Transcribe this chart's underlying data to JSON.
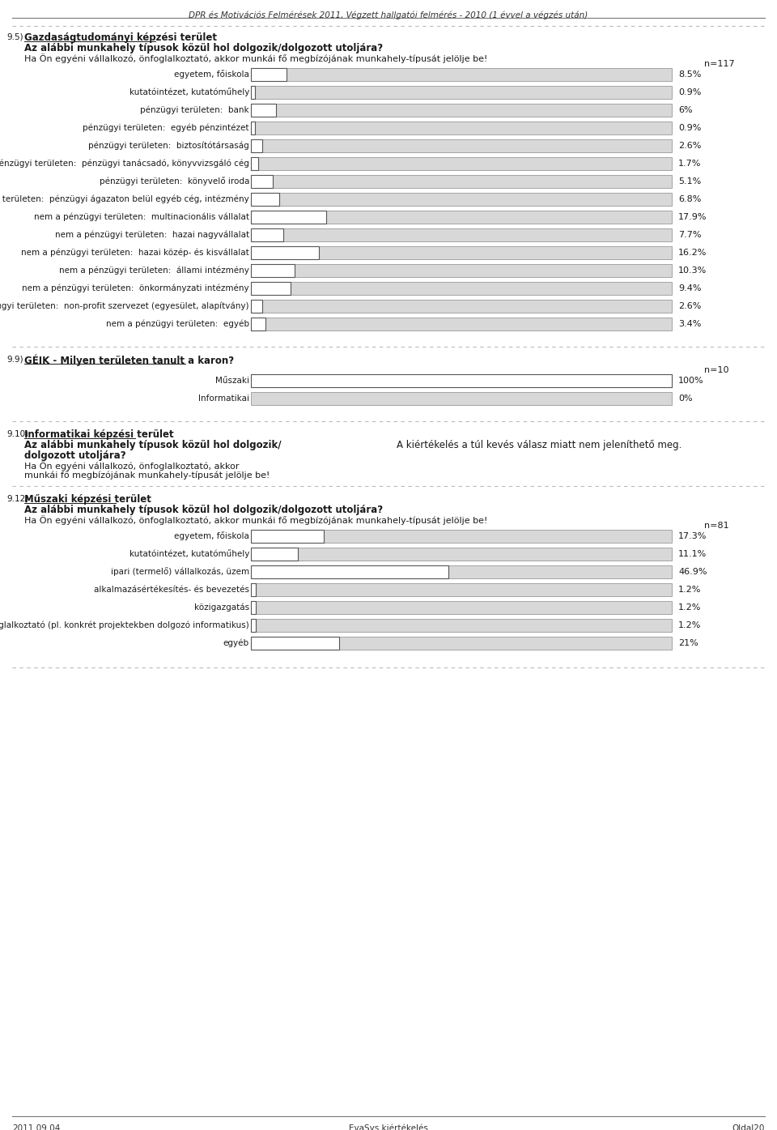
{
  "page_header": "DPR és Motivációs Felmérések 2011, Végzett hallgatói felmérés - 2010 (1 évvel a végzés után)",
  "page_footer_left": "2011.09.04",
  "page_footer_center": "EvaSys kiértékelés",
  "page_footer_right": "Oldal20",
  "section1_number": "9.5)",
  "section1_title": "Gazdaságtudományi képzési terület",
  "section1_subtitle": "Az alábbi munkahely típusok közül hol dolgozik/dolgozott utoljára?",
  "section1_desc": "Ha Ön egyéni vállalkozó, önfoglalkoztató, akkor munkái fő megbízójának munkahely-típusát jelölje be!",
  "section1_n": "n=117",
  "section1_bars": [
    {
      "label": "egyetem, főiskola",
      "value": 8.5,
      "pct": "8.5%"
    },
    {
      "label": "kutatóintézet, kutatóműhely",
      "value": 0.9,
      "pct": "0.9%"
    },
    {
      "label": "pénzügyi területen:  bank",
      "value": 6.0,
      "pct": "6%"
    },
    {
      "label": "pénzügyi területen:  egyéb pénzintézet",
      "value": 0.9,
      "pct": "0.9%"
    },
    {
      "label": "pénzügyi területen:  biztosítótársaság",
      "value": 2.6,
      "pct": "2.6%"
    },
    {
      "label": "pénzügyi területen:  pénzügyi tanácsadó, könyvvizsgáló cég",
      "value": 1.7,
      "pct": "1.7%"
    },
    {
      "label": "pénzügyi területen:  könyvelő iroda",
      "value": 5.1,
      "pct": "5.1%"
    },
    {
      "label": "pénzügyi területen:  pénzügyi ágazaton belül egyéb cég, intézmény",
      "value": 6.8,
      "pct": "6.8%"
    },
    {
      "label": "nem a pénzügyi területen:  multinacionális vállalat",
      "value": 17.9,
      "pct": "17.9%"
    },
    {
      "label": "nem a pénzügyi területen:  hazai nagyvállalat",
      "value": 7.7,
      "pct": "7.7%"
    },
    {
      "label": "nem a pénzügyi területen:  hazai közép- és kisvállalat",
      "value": 16.2,
      "pct": "16.2%"
    },
    {
      "label": "nem a pénzügyi területen:  állami intézmény",
      "value": 10.3,
      "pct": "10.3%"
    },
    {
      "label": "nem a pénzügyi területen:  önkormányzati intézmény",
      "value": 9.4,
      "pct": "9.4%"
    },
    {
      "label": "nem a pénzügyi területen:  non-profit szervezet (egyesület, alapítvány)",
      "value": 2.6,
      "pct": "2.6%"
    },
    {
      "label": "nem a pénzügyi területen:  egyéb",
      "value": 3.4,
      "pct": "3.4%"
    }
  ],
  "section2_number": "9.9)",
  "section2_title": "GÉIK - Milyen területen tanult a karon?",
  "section2_n": "n=10",
  "section2_bars": [
    {
      "label": "Műszaki",
      "value": 100.0,
      "pct": "100%"
    },
    {
      "label": "Informatikai",
      "value": 0.0,
      "pct": "0%"
    }
  ],
  "section3_number": "9.10)",
  "section3_title1": "Informatikai képzési terület",
  "section3_subtitle": "Az alábbi munkahely típusok közül hol dolgozik/",
  "section3_subtitle2": "dolgozott utoljára?",
  "section3_desc1": "Ha Ön egyéni vállalkozó, önfoglalkoztató, akkor",
  "section3_desc2": "munkái fő megbízójának munkahely-típusát jelölje be!",
  "section3_note": "A kiértékelés a túl kevés válasz miatt nem jeleníthető meg.",
  "section4_number": "9.12)",
  "section4_title": "Műszaki képzési terület",
  "section4_subtitle": "Az alábbi munkahely típusok közül hol dolgozik/dolgozott utoljára?",
  "section4_desc": "Ha Ön egyéni vállalkozó, önfoglalkoztató, akkor munkái fő megbízójának munkahely-típusát jelölje be!",
  "section4_n": "n=81",
  "section4_bars": [
    {
      "label": "egyetem, főiskola",
      "value": 17.3,
      "pct": "17.3%"
    },
    {
      "label": "kutatóintézet, kutatóműhely",
      "value": 11.1,
      "pct": "11.1%"
    },
    {
      "label": "ipari (termelő) vállalkozás, üzem",
      "value": 46.9,
      "pct": "46.9%"
    },
    {
      "label": "alkalmazásértékesítés- és bevezetés",
      "value": 1.2,
      "pct": "1.2%"
    },
    {
      "label": "közigazgatás",
      "value": 1.2,
      "pct": "1.2%"
    },
    {
      "label": "önfoglalkoztató (pl. konkrét projektekben dolgozó informatikus)",
      "value": 1.2,
      "pct": "1.2%"
    },
    {
      "label": "egyéb",
      "value": 21.0,
      "pct": "21%"
    }
  ],
  "bar_max": 100.0,
  "bar_color_light": "#d8d8d8",
  "bar_outline": "#888888",
  "text_color": "#1a1a1a",
  "dashed_line_color": "#aaaaaa",
  "header_line_color": "#555555"
}
